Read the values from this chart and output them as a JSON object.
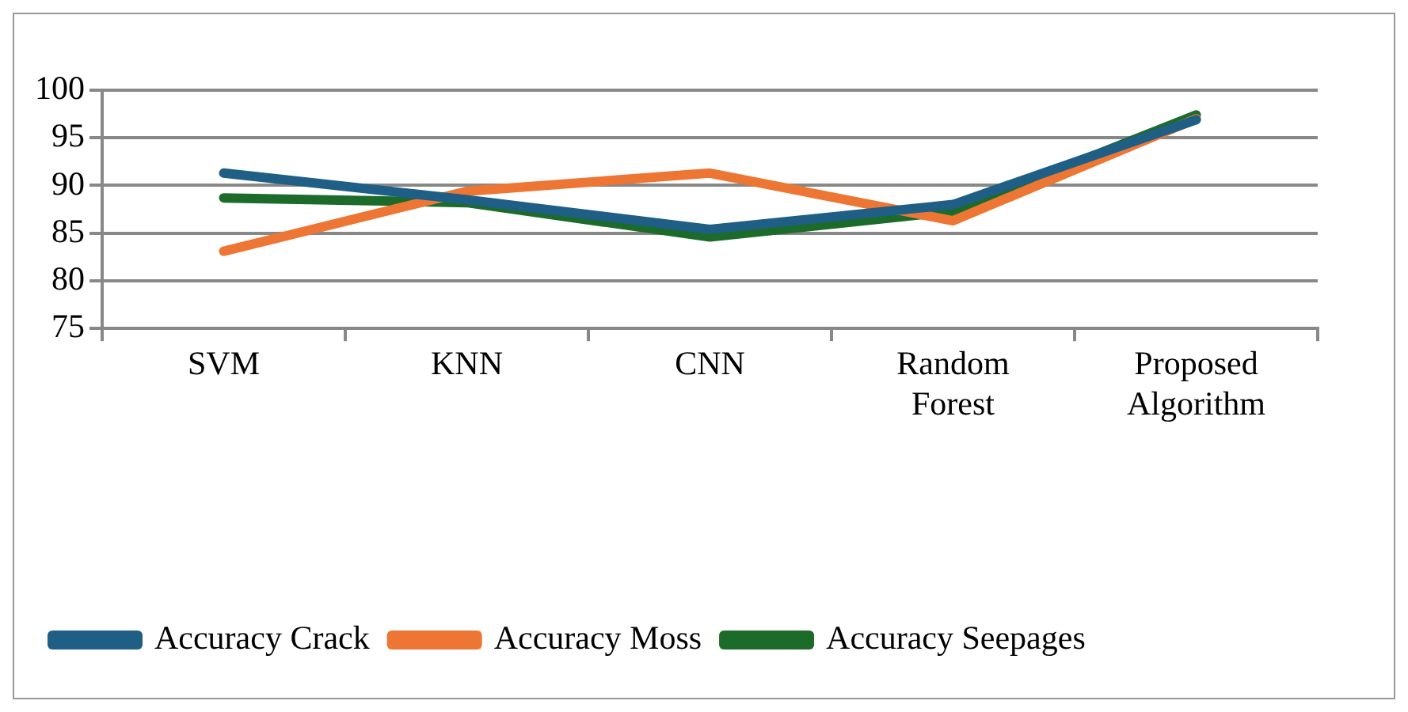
{
  "chart_data": {
    "type": "line",
    "categories": [
      "SVM",
      "KNN",
      "CNN",
      "Random Forest",
      "Proposed Algorithm"
    ],
    "series": [
      {
        "name": "Accuracy Crack",
        "color": "#1f5f86",
        "values": [
          91.3,
          88.5,
          85.4,
          88,
          96.9
        ]
      },
      {
        "name": "Accuracy Moss",
        "color": "#ed7634",
        "values": [
          83.1,
          89.4,
          91.3,
          86.3,
          97
        ]
      },
      {
        "name": "Accuracy Seepages",
        "color": "#1c6b2a",
        "values": [
          88.7,
          88.2,
          84.6,
          87.3,
          97.4
        ]
      }
    ],
    "ylim": [
      75,
      100
    ],
    "yticks": [
      75,
      80,
      85,
      90,
      95,
      100
    ],
    "grid": "y",
    "legend": "bottom",
    "marker": "none",
    "line_style": "solid"
  }
}
